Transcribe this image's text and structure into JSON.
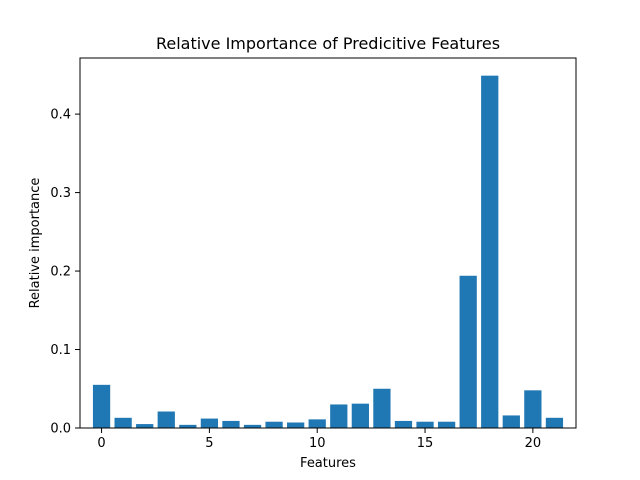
{
  "chart_data": {
    "type": "bar",
    "title": "Relative Importance of Predicitive Features",
    "xlabel": "Features",
    "ylabel": "Relative importance",
    "x": [
      0,
      1,
      2,
      3,
      4,
      5,
      6,
      7,
      8,
      9,
      10,
      11,
      12,
      13,
      14,
      15,
      16,
      17,
      18,
      19,
      20,
      21
    ],
    "values": [
      0.055,
      0.013,
      0.005,
      0.021,
      0.004,
      0.012,
      0.009,
      0.004,
      0.008,
      0.007,
      0.011,
      0.03,
      0.031,
      0.05,
      0.009,
      0.008,
      0.008,
      0.194,
      0.449,
      0.016,
      0.048,
      0.013
    ],
    "xlim": [
      -1.0,
      22.0
    ],
    "ylim": [
      0,
      0.4715
    ],
    "xticks": [
      0,
      5,
      10,
      15,
      20
    ],
    "yticks": [
      0.0,
      0.1,
      0.2,
      0.3,
      0.4
    ],
    "bar_color": "#1f77b4",
    "grid": false,
    "legend": "none"
  }
}
